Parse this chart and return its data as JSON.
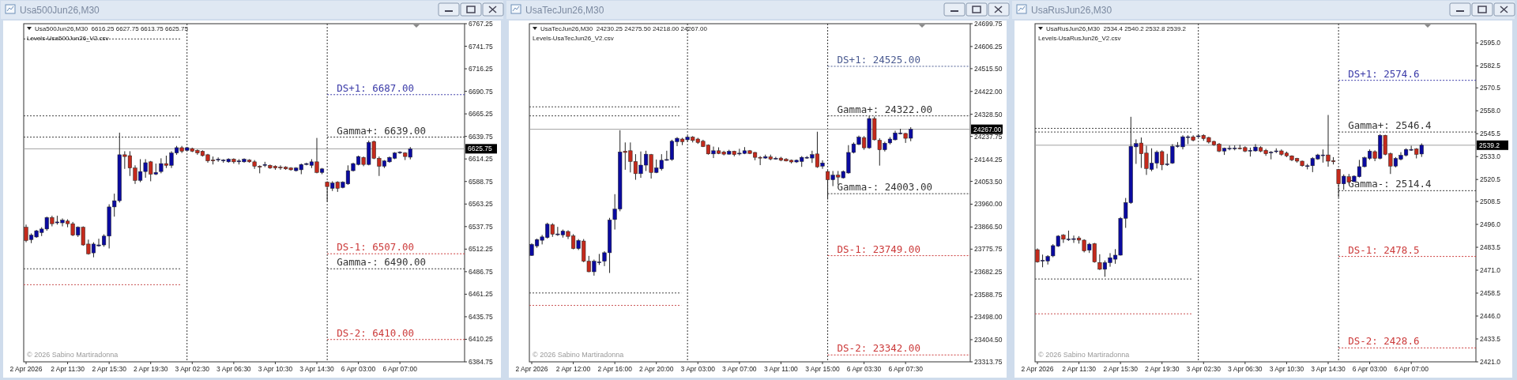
{
  "chart_data": [
    {
      "type": "candlestick",
      "title": "Usa500Jun26,M30",
      "subtitle": "Usa500Jun26,M30  6616.25 6627.75 6613.75 6625.75",
      "annotations": [
        "Levels-Usa500Jun26_V2.csv",
        "© 2026 Sabino Martiradonna"
      ],
      "categories": [
        "2 Apr 2026",
        null,
        null,
        null,
        null,
        null,
        null,
        null,
        "2 Apr 11:30",
        null,
        null,
        null,
        null,
        null,
        null,
        null,
        "2 Apr 15:30",
        null,
        null,
        null,
        null,
        null,
        null,
        null,
        "2 Apr 19:30",
        null,
        null,
        null,
        null,
        null,
        null,
        null,
        "3 Apr 02:30",
        null,
        null,
        null,
        null,
        null,
        null,
        null,
        "3 Apr 06:30",
        null,
        null,
        null,
        null,
        null,
        null,
        null,
        "3 Apr 10:30",
        null,
        null,
        null,
        null,
        null,
        null,
        null,
        "3 Apr 14:30",
        null,
        null,
        null,
        null,
        null,
        null,
        null,
        "6 Apr 03:00",
        null,
        null,
        null,
        null,
        null,
        null,
        null,
        "6 Apr 07:00",
        null,
        null,
        null,
        null,
        null,
        null,
        null,
        null,
        null,
        null,
        null,
        null
      ],
      "ohlc": [
        [
          6537,
          6540,
          6520,
          6522
        ],
        [
          6523,
          6530,
          6519,
          6528
        ],
        [
          6526,
          6534,
          6525,
          6533
        ],
        [
          6531,
          6537,
          6527,
          6535
        ],
        [
          6535,
          6549,
          6533,
          6548
        ],
        [
          6548,
          6550,
          6538,
          6541
        ],
        [
          6542,
          6550,
          6540,
          6543
        ],
        [
          6542,
          6547,
          6538,
          6545
        ],
        [
          6544,
          6546,
          6537,
          6541
        ],
        [
          6541,
          6543,
          6527,
          6528
        ],
        [
          6528,
          6538,
          6526,
          6537
        ],
        [
          6537,
          6538,
          6516,
          6517
        ],
        [
          6518,
          6523,
          6506,
          6507
        ],
        [
          6508,
          6520,
          6503,
          6518
        ],
        [
          6516,
          6524,
          6515,
          6517
        ],
        [
          6517,
          6529,
          6515,
          6527
        ],
        [
          6527,
          6563,
          6513,
          6560
        ],
        [
          6560,
          6575,
          6549,
          6567
        ],
        [
          6567,
          6644,
          6565,
          6619
        ],
        [
          6619,
          6623,
          6603,
          6617
        ],
        [
          6618,
          6623,
          6595,
          6604
        ],
        [
          6604,
          6607,
          6586,
          6590
        ],
        [
          6590,
          6614,
          6588,
          6600
        ],
        [
          6600,
          6614,
          6593,
          6610
        ],
        [
          6611,
          6612,
          6589,
          6597
        ],
        [
          6597,
          6609,
          6596,
          6599
        ],
        [
          6600,
          6615,
          6598,
          6609
        ],
        [
          6609,
          6618,
          6604,
          6607
        ],
        [
          6607,
          6623,
          6604,
          6621
        ],
        [
          6621,
          6629,
          6619,
          6627
        ],
        [
          6627,
          6629,
          6621,
          6623
        ],
        [
          6624,
          6628,
          6623,
          6627
        ],
        [
          6626,
          6627,
          6622,
          6623
        ],
        [
          6624,
          6625,
          6619,
          6621
        ],
        [
          6623,
          6624,
          6617,
          6618
        ],
        [
          6619,
          6620,
          6610,
          6612
        ],
        [
          6613,
          6617,
          6608,
          6612
        ],
        [
          6613,
          6616,
          6611,
          6614
        ],
        [
          6612,
          6614,
          6610,
          6613
        ],
        [
          6611,
          6615,
          6610,
          6614
        ],
        [
          6614,
          6615,
          6609,
          6611
        ],
        [
          6611,
          6614,
          6608,
          6612
        ],
        [
          6611,
          6615,
          6610,
          6614
        ],
        [
          6613,
          6614,
          6610,
          6611
        ],
        [
          6611,
          6613,
          6603,
          6606
        ],
        [
          6606,
          6607,
          6598,
          6605
        ],
        [
          6607,
          6611,
          6605,
          6608
        ],
        [
          6607,
          6608,
          6603,
          6604
        ],
        [
          6606,
          6607,
          6602,
          6604
        ],
        [
          6605,
          6607,
          6602,
          6604
        ],
        [
          6605,
          6606,
          6602,
          6603
        ],
        [
          6604,
          6605,
          6601,
          6602
        ],
        [
          6601,
          6605,
          6600,
          6604
        ],
        [
          6602,
          6609,
          6597,
          6608
        ],
        [
          6608,
          6610,
          6607,
          6609
        ],
        [
          6607,
          6614,
          6604,
          6611
        ],
        [
          6611,
          6638,
          6598,
          6599
        ],
        [
          6599,
          6604,
          6597,
          6603
        ],
        [
          6588,
          6589,
          6566,
          6583
        ],
        [
          6581,
          6589,
          6578,
          6587
        ],
        [
          6588,
          6589,
          6577,
          6581
        ],
        [
          6582,
          6589,
          6581,
          6588
        ],
        [
          6586,
          6607,
          6585,
          6601
        ],
        [
          6601,
          6610,
          6600,
          6609
        ],
        [
          6608,
          6618,
          6607,
          6617
        ],
        [
          6616,
          6617,
          6606,
          6608
        ],
        [
          6608,
          6635,
          6607,
          6633
        ],
        [
          6634,
          6635,
          6614,
          6615
        ],
        [
          6615,
          6617,
          6595,
          6606
        ],
        [
          6606,
          6613,
          6604,
          6612
        ],
        [
          6611,
          6617,
          6610,
          6616
        ],
        [
          6615,
          6622,
          6614,
          6621
        ],
        [
          6621,
          6623,
          6620,
          6622
        ],
        [
          6621,
          6622,
          6613,
          6617
        ],
        [
          6616.25,
          6627.75,
          6613.75,
          6625.75
        ],
        null,
        null,
        null,
        null,
        null,
        null,
        null,
        null,
        null,
        null
      ],
      "ylim": [
        6384.75,
        6767.25
      ],
      "yticks": [
        6767.25,
        6741.75,
        6716.25,
        6690.75,
        6665.25,
        6639.75,
        6614.25,
        6588.75,
        6563.25,
        6537.75,
        6512.25,
        6486.75,
        6461.25,
        6435.75,
        6410.25,
        6384.75
      ],
      "ref_lines": [
        {
          "axis": "y",
          "value": 6750,
          "color": "#444444",
          "line_style": "dotted"
        },
        {
          "axis": "y",
          "value": 6663,
          "color": "#444444",
          "line_style": "dotted"
        },
        {
          "axis": "y",
          "value": 6639,
          "color": "#444444",
          "line_style": "dotted"
        },
        {
          "axis": "y",
          "value": 6490,
          "color": "#444444",
          "line_style": "dotted"
        },
        {
          "axis": "y",
          "value": 6472,
          "color": "#c85050",
          "line_style": "dotted"
        },
        {
          "axis": "y",
          "value": 6625.75,
          "label": "6625.75",
          "color": "#a0a0a0",
          "line_style": "solid"
        },
        {
          "axis": "y",
          "value": 6687,
          "label": "DS+1: 6687.00",
          "color": "#3a3aa8",
          "line_style": "dotted"
        },
        {
          "axis": "y",
          "value": 6639,
          "label": "Gamma+: 6639.00",
          "color": "#333333",
          "line_style": "dotted"
        },
        {
          "axis": "y",
          "value": 6507,
          "label": "DS-1: 6507.00",
          "color": "#cc3a3a",
          "line_style": "dotted"
        },
        {
          "axis": "y",
          "value": 6490,
          "label": "Gamma-: 6490.00",
          "color": "#333333",
          "line_style": "dotted"
        },
        {
          "axis": "y",
          "value": 6410,
          "label": "DS-2: 6410.00",
          "color": "#cc3a3a",
          "line_style": "dotted"
        }
      ]
    },
    {
      "type": "candlestick",
      "title": "UsaTecJun26,M30",
      "subtitle": "UsaTecJun26,M30  24230.25 24275.50 24218.00 24267.00",
      "annotations": [
        "Levels-UsaTecJun26_V2.csv",
        "© 2026 Sabino Martiradonna"
      ],
      "categories": [
        "2 Apr 2026",
        null,
        null,
        null,
        null,
        null,
        null,
        null,
        "2 Apr 12:00",
        null,
        null,
        null,
        null,
        null,
        null,
        null,
        "2 Apr 16:00",
        null,
        null,
        null,
        null,
        null,
        null,
        null,
        "2 Apr 20:00",
        null,
        null,
        null,
        null,
        null,
        null,
        null,
        "3 Apr 03:00",
        null,
        null,
        null,
        null,
        null,
        null,
        null,
        "3 Apr 07:00",
        null,
        null,
        null,
        null,
        null,
        null,
        null,
        "3 Apr 11:00",
        null,
        null,
        null,
        null,
        null,
        null,
        null,
        "3 Apr 15:00",
        null,
        null,
        null,
        null,
        null,
        null,
        null,
        "6 Apr 03:30",
        null,
        null,
        null,
        null,
        null,
        null,
        null,
        "6 Apr 07:30",
        null,
        null,
        null,
        null,
        null,
        null,
        null,
        null,
        null,
        null,
        null,
        null
      ],
      "ohlc": [
        [
          23750,
          23800,
          23748,
          23795
        ],
        [
          23789,
          23819,
          23781,
          23815
        ],
        [
          23812,
          23834,
          23795,
          23826
        ],
        [
          23823,
          23884,
          23819,
          23878
        ],
        [
          23876,
          23882,
          23826,
          23837
        ],
        [
          23836,
          23867,
          23830,
          23838
        ],
        [
          23834,
          23856,
          23823,
          23850
        ],
        [
          23848,
          23853,
          23817,
          23828
        ],
        [
          23830,
          23837,
          23775,
          23778
        ],
        [
          23778,
          23817,
          23772,
          23811
        ],
        [
          23809,
          23817,
          23722,
          23726
        ],
        [
          23726,
          23748,
          23681,
          23683
        ],
        [
          23683,
          23733,
          23667,
          23726
        ],
        [
          23721,
          23756,
          23711,
          23723
        ],
        [
          23726,
          23767,
          23706,
          23761
        ],
        [
          23761,
          23904,
          23678,
          23895
        ],
        [
          23897,
          24001,
          23856,
          23940
        ],
        [
          23940,
          24263,
          23931,
          24174
        ],
        [
          24177,
          24213,
          24101,
          24172
        ],
        [
          24179,
          24213,
          24090,
          24135
        ],
        [
          24135,
          24165,
          24060,
          24085
        ],
        [
          24085,
          24176,
          24068,
          24120
        ],
        [
          24120,
          24179,
          24096,
          24165
        ],
        [
          24163,
          24166,
          24065,
          24090
        ],
        [
          24090,
          24143,
          24087,
          24109
        ],
        [
          24105,
          24165,
          24098,
          24140
        ],
        [
          24142,
          24179,
          24138,
          24143
        ],
        [
          24143,
          24224,
          24138,
          24218
        ],
        [
          24216,
          24235,
          24198,
          24230
        ],
        [
          24227,
          24232,
          24202,
          24216
        ],
        [
          24224,
          24241,
          24216,
          24235
        ],
        [
          24235,
          24239,
          24213,
          24221
        ],
        [
          24227,
          24232,
          24207,
          24213
        ],
        [
          24218,
          24224,
          24194,
          24196
        ],
        [
          24202,
          24205,
          24163,
          24166
        ],
        [
          24166,
          24196,
          24149,
          24179
        ],
        [
          24179,
          24193,
          24165,
          24168
        ],
        [
          24174,
          24179,
          24160,
          24165
        ],
        [
          24165,
          24183,
          24163,
          24177
        ],
        [
          24177,
          24179,
          24156,
          24163
        ],
        [
          24168,
          24187,
          24160,
          24169
        ],
        [
          24168,
          24194,
          24165,
          24179
        ],
        [
          24179,
          24182,
          24165,
          24168
        ],
        [
          24172,
          24174,
          24140,
          24152
        ],
        [
          24152,
          24157,
          24120,
          24151
        ],
        [
          24149,
          24163,
          24146,
          24155
        ],
        [
          24154,
          24163,
          24140,
          24145
        ],
        [
          24147,
          24154,
          24143,
          24148
        ],
        [
          24149,
          24154,
          24136,
          24140
        ],
        [
          24144,
          24149,
          24135,
          24137
        ],
        [
          24140,
          24143,
          24127,
          24133
        ],
        [
          24133,
          24143,
          24129,
          24140
        ],
        [
          24135,
          24157,
          24113,
          24152
        ],
        [
          24151,
          24157,
          24146,
          24152
        ],
        [
          24149,
          24179,
          24129,
          24163
        ],
        [
          24166,
          24257,
          24109,
          24113
        ],
        [
          24116,
          24140,
          24105,
          24129
        ],
        [
          24094,
          24098,
          23979,
          24060
        ],
        [
          24060,
          24096,
          24034,
          24079
        ],
        [
          24079,
          24096,
          24040,
          24071
        ],
        [
          24068,
          24098,
          24065,
          24094
        ],
        [
          24088,
          24202,
          24085,
          24172
        ],
        [
          24172,
          24213,
          24168,
          24207
        ],
        [
          24205,
          24241,
          24202,
          24235
        ],
        [
          24233,
          24239,
          24183,
          24191
        ],
        [
          24191,
          24321,
          24187,
          24311
        ],
        [
          24311,
          24319,
          24221,
          24224
        ],
        [
          24222,
          24230,
          24118,
          24183
        ],
        [
          24183,
          24216,
          24176,
          24210
        ],
        [
          24211,
          24235,
          24205,
          24227
        ],
        [
          24224,
          24261,
          24221,
          24252
        ],
        [
          24251,
          24269,
          24246,
          24252
        ],
        [
          24250,
          24252,
          24211,
          24230
        ],
        [
          24230.25,
          24275.5,
          24218,
          24267
        ],
        null,
        null,
        null,
        null,
        null,
        null,
        null,
        null,
        null,
        null,
        null
      ],
      "ylim": [
        23313.75,
        24699.75
      ],
      "yticks": [
        24699.75,
        24606.25,
        {
          "value": 24515.5,
          "label": "24515.50"
        },
        {
          "value": 24422,
          "label": "24422.00"
        },
        {
          "value": 24328.5,
          "label": "24328.50"
        },
        24237.75,
        24144.25,
        {
          "value": 24053.5,
          "label": "24053.50"
        },
        {
          "value": 23960,
          "label": "23960.00"
        },
        {
          "value": 23866.5,
          "label": "23866.50"
        },
        23775.75,
        23682.25,
        23588.75,
        {
          "value": 23498,
          "label": "23498.00"
        },
        {
          "value": 23404.5,
          "label": "23404.50"
        },
        23313.75
      ],
      "ref_lines": [
        {
          "axis": "y",
          "value": 24359,
          "color": "#444444",
          "line_style": "dotted"
        },
        {
          "axis": "y",
          "value": 24322,
          "color": "#444444",
          "line_style": "dotted"
        },
        {
          "axis": "y",
          "value": 23596,
          "color": "#444444",
          "line_style": "dotted"
        },
        {
          "axis": "y",
          "value": 23545,
          "color": "#c85050",
          "line_style": "dotted"
        },
        {
          "axis": "y",
          "value": 24267,
          "label": "24267.00",
          "color": "#a0a0a0",
          "line_style": "solid"
        },
        {
          "axis": "y",
          "value": 24525,
          "label": "DS+1: 24525.00",
          "color": "#4a5a90",
          "line_style": "dotted"
        },
        {
          "axis": "y",
          "value": 24322,
          "label": "Gamma+: 24322.00",
          "color": "#333333",
          "line_style": "dotted"
        },
        {
          "axis": "y",
          "value": 24003,
          "label": "Gamma-: 24003.00",
          "color": "#333333",
          "line_style": "dotted"
        },
        {
          "axis": "y",
          "value": 23749,
          "label": "DS-1: 23749.00",
          "color": "#cc3a3a",
          "line_style": "dotted"
        },
        {
          "axis": "y",
          "value": 23342,
          "label": "DS-2: 23342.00",
          "color": "#cc3a3a",
          "line_style": "dotted"
        }
      ]
    },
    {
      "type": "candlestick",
      "title": "UsaRusJun26,M30",
      "subtitle": "UsaRusJun26,M30  2534.4 2540.2 2532.8 2539.2",
      "annotations": [
        "Levels-UsaRusJun26_V2.csv",
        "© 2026 Sabino Martiradonna"
      ],
      "categories": [
        "2 Apr 2026",
        null,
        null,
        null,
        null,
        null,
        null,
        null,
        "2 Apr 11:30",
        null,
        null,
        null,
        null,
        null,
        null,
        null,
        "2 Apr 15:30",
        null,
        null,
        null,
        null,
        null,
        null,
        null,
        "2 Apr 19:30",
        null,
        null,
        null,
        null,
        null,
        null,
        null,
        "3 Apr 02:30",
        null,
        null,
        null,
        null,
        null,
        null,
        null,
        "3 Apr 06:30",
        null,
        null,
        null,
        null,
        null,
        null,
        null,
        "3 Apr 10:30",
        null,
        null,
        null,
        null,
        null,
        null,
        null,
        "3 Apr 14:30",
        null,
        null,
        null,
        null,
        null,
        null,
        null,
        "6 Apr 03:00",
        null,
        null,
        null,
        null,
        null,
        null,
        null,
        "6 Apr 07:00",
        null,
        null,
        null,
        null,
        null,
        null,
        null,
        null,
        null,
        null,
        null,
        null
      ],
      "ohlc": [
        [
          2482.2,
          2482.9,
          2475.1,
          2475.5
        ],
        [
          2476.2,
          2479.5,
          2472.6,
          2476.4
        ],
        [
          2476.0,
          2479.2,
          2474.1,
          2478.5
        ],
        [
          2478.8,
          2485.2,
          2478.1,
          2484.4
        ],
        [
          2484.1,
          2490.1,
          2483.7,
          2489.6
        ],
        [
          2490.1,
          2490.7,
          2485.9,
          2487.9
        ],
        [
          2487.8,
          2492.6,
          2487.0,
          2488.0
        ],
        [
          2488.1,
          2489.9,
          2485.9,
          2488.2
        ],
        [
          2488.6,
          2489.6,
          2485.5,
          2487.4
        ],
        [
          2487.4,
          2487.9,
          2480.7,
          2481.5
        ],
        [
          2481.9,
          2485.9,
          2480.4,
          2485.2
        ],
        [
          2485.5,
          2485.9,
          2475.1,
          2475.5
        ],
        [
          2475.2,
          2479.7,
          2471.1,
          2471.5
        ],
        [
          2471.5,
          2476.3,
          2467.4,
          2475.2
        ],
        [
          2475.1,
          2480.3,
          2472.9,
          2477.8
        ],
        [
          2477.0,
          2482.5,
          2474.5,
          2479.2
        ],
        [
          2479.2,
          2500.0,
          2479.0,
          2499.3
        ],
        [
          2499.3,
          2510.4,
          2494.1,
          2507.9
        ],
        [
          2507.8,
          2554.7,
          2507.2,
          2538.6
        ],
        [
          2538.3,
          2542.4,
          2529.0,
          2540.1
        ],
        [
          2540.4,
          2543.4,
          2526.8,
          2534.5
        ],
        [
          2534.9,
          2538.9,
          2523.0,
          2526.5
        ],
        [
          2526.0,
          2537.5,
          2525.0,
          2529.4
        ],
        [
          2529.4,
          2536.3,
          2526.5,
          2535.4
        ],
        [
          2535.7,
          2536.4,
          2525.6,
          2528.5
        ],
        [
          2528.9,
          2534.5,
          2527.9,
          2529.0
        ],
        [
          2529.4,
          2539.8,
          2529.0,
          2538.6
        ],
        [
          2538.8,
          2540.9,
          2537.9,
          2538.9
        ],
        [
          2538.3,
          2544.6,
          2536.9,
          2543.8
        ],
        [
          2543.7,
          2544.6,
          2539.8,
          2543.8
        ],
        [
          2543.8,
          2544.6,
          2541.3,
          2541.9
        ],
        [
          2544.2,
          2545.3,
          2543.4,
          2544.3
        ],
        [
          2544.6,
          2545.2,
          2541.6,
          2542.8
        ],
        [
          2543.4,
          2543.8,
          2540.1,
          2540.9
        ],
        [
          2541.3,
          2541.6,
          2538.9,
          2539.4
        ],
        [
          2539.8,
          2540.4,
          2535.4,
          2536.0
        ],
        [
          2536.0,
          2537.9,
          2533.9,
          2537.5
        ],
        [
          2537.4,
          2539.0,
          2536.4,
          2537.5
        ],
        [
          2537.6,
          2539.1,
          2536.4,
          2537.7
        ],
        [
          2537.7,
          2539.4,
          2536.9,
          2537.6
        ],
        [
          2537.9,
          2538.6,
          2535.4,
          2536.0
        ],
        [
          2536.3,
          2537.9,
          2533.0,
          2536.4
        ],
        [
          2536.1,
          2539.8,
          2535.7,
          2538.2
        ],
        [
          2537.9,
          2538.6,
          2535.4,
          2536.0
        ],
        [
          2536.4,
          2537.2,
          2533.4,
          2534.5
        ],
        [
          2535.3,
          2536.0,
          2531.5,
          2535.4
        ],
        [
          2536.0,
          2537.5,
          2534.9,
          2536.1
        ],
        [
          2536.1,
          2536.9,
          2533.4,
          2534.2
        ],
        [
          2534.9,
          2535.7,
          2532.7,
          2533.4
        ],
        [
          2533.4,
          2533.7,
          2530.5,
          2531.2
        ],
        [
          2532.0,
          2532.3,
          2529.7,
          2530.5
        ],
        [
          2530.5,
          2530.8,
          2527.5,
          2528.0
        ],
        [
          2527.9,
          2529.0,
          2526.0,
          2528.0
        ],
        [
          2528.0,
          2532.7,
          2524.5,
          2532.0
        ],
        [
          2531.7,
          2534.5,
          2531.2,
          2533.9
        ],
        [
          2533.8,
          2536.9,
          2529.7,
          2533.9
        ],
        [
          2533.9,
          2555.7,
          2527.5,
          2530.5
        ],
        [
          2530.8,
          2532.7,
          2528.7,
          2530.2
        ],
        [
          2526.0,
          2526.3,
          2510.7,
          2518.1
        ],
        [
          2518.1,
          2523.3,
          2514.9,
          2522.3
        ],
        [
          2522.0,
          2523.5,
          2518.1,
          2519.0
        ],
        [
          2519.3,
          2522.8,
          2519.0,
          2522.3
        ],
        [
          2522.0,
          2531.2,
          2521.6,
          2527.5
        ],
        [
          2527.5,
          2533.0,
          2527.1,
          2532.4
        ],
        [
          2532.0,
          2536.9,
          2531.2,
          2536.0
        ],
        [
          2535.7,
          2536.4,
          2530.5,
          2532.0
        ],
        [
          2532.0,
          2545.3,
          2531.5,
          2544.6
        ],
        [
          2544.6,
          2544.9,
          2533.7,
          2534.2
        ],
        [
          2534.6,
          2535.2,
          2523.5,
          2527.8
        ],
        [
          2527.8,
          2532.7,
          2527.1,
          2532.0
        ],
        [
          2531.5,
          2535.4,
          2530.9,
          2533.7
        ],
        [
          2533.7,
          2537.5,
          2533.1,
          2536.9
        ],
        [
          2536.8,
          2538.9,
          2536.1,
          2536.9
        ],
        [
          2537.2,
          2537.6,
          2532.0,
          2534.2
        ],
        [
          2534.4,
          2540.2,
          2532.8,
          2539.2
        ],
        null,
        null,
        null,
        null,
        null,
        null,
        null,
        null,
        null,
        null
      ],
      "ylim": [
        2421,
        2605.5
      ],
      "yticks": [
        {
          "value": 2595,
          "label": "2595.0"
        },
        2582.5,
        2570.5,
        {
          "value": 2558,
          "label": "2558.0"
        },
        2545.5,
        {
          "value": 2533,
          "label": "2533.0"
        },
        2520.5,
        2508.5,
        {
          "value": 2496,
          "label": "2496.0"
        },
        2483.5,
        {
          "value": 2471,
          "label": "2471.0"
        },
        2458.5,
        {
          "value": 2446,
          "label": "2446.0"
        },
        2433.5,
        {
          "value": 2421,
          "label": "2421.0"
        }
      ],
      "ref_lines": [
        {
          "axis": "y",
          "value": 2548.4,
          "color": "#444444",
          "line_style": "dotted"
        },
        {
          "axis": "y",
          "value": 2546.4,
          "color": "#444444",
          "line_style": "dotted"
        },
        {
          "axis": "y",
          "value": 2466.2,
          "color": "#444444",
          "line_style": "dotted"
        },
        {
          "axis": "y",
          "value": 2447.2,
          "color": "#c85050",
          "line_style": "dotted"
        },
        {
          "axis": "y",
          "value": 2539.2,
          "label": "2539.2",
          "color": "#a0a0a0",
          "line_style": "solid"
        },
        {
          "axis": "y",
          "value": 2574.6,
          "label": "DS+1: 2574.6",
          "color": "#3a3aa8",
          "line_style": "dotted"
        },
        {
          "axis": "y",
          "value": 2546.4,
          "label": "Gamma+: 2546.4",
          "color": "#333333",
          "line_style": "dotted"
        },
        {
          "axis": "y",
          "value": 2514.4,
          "label": "Gamma-: 2514.4",
          "color": "#333333",
          "line_style": "dotted"
        },
        {
          "axis": "y",
          "value": 2478.5,
          "label": "DS-1: 2478.5",
          "color": "#cc3a3a",
          "line_style": "dotted"
        },
        {
          "axis": "y",
          "value": 2428.6,
          "label": "DS-2: 2428.6",
          "color": "#cc3a3a",
          "line_style": "dotted"
        }
      ]
    }
  ]
}
